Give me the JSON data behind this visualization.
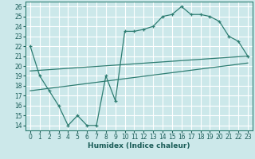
{
  "xlabel": "Humidex (Indice chaleur)",
  "xlim": [
    -0.5,
    23.5
  ],
  "ylim": [
    13.5,
    26.5
  ],
  "xticks": [
    0,
    1,
    2,
    3,
    4,
    5,
    6,
    7,
    8,
    9,
    10,
    11,
    12,
    13,
    14,
    15,
    16,
    17,
    18,
    19,
    20,
    21,
    22,
    23
  ],
  "yticks": [
    14,
    15,
    16,
    17,
    18,
    19,
    20,
    21,
    22,
    23,
    24,
    25,
    26
  ],
  "bg_color": "#cce8ea",
  "grid_color": "#ffffff",
  "line_color": "#2e7d72",
  "line1_x": [
    0,
    1,
    2,
    3,
    4,
    5,
    6,
    7,
    8,
    9,
    10,
    11,
    12,
    13,
    14,
    15,
    16,
    17,
    18,
    19,
    20,
    21,
    22,
    23
  ],
  "line1_y": [
    22,
    19,
    17.5,
    16,
    14,
    15,
    14,
    14,
    19,
    16.5,
    23.5,
    23.5,
    23.7,
    24,
    25,
    25.2,
    26,
    25.2,
    25.2,
    25.0,
    24.5,
    23,
    22.5,
    21
  ],
  "line2_x": [
    0,
    23
  ],
  "line2_y": [
    19.5,
    21.0
  ],
  "line3_x": [
    0,
    23
  ],
  "line3_y": [
    17.5,
    20.3
  ],
  "axis_fontsize": 6.5,
  "tick_fontsize": 5.5
}
